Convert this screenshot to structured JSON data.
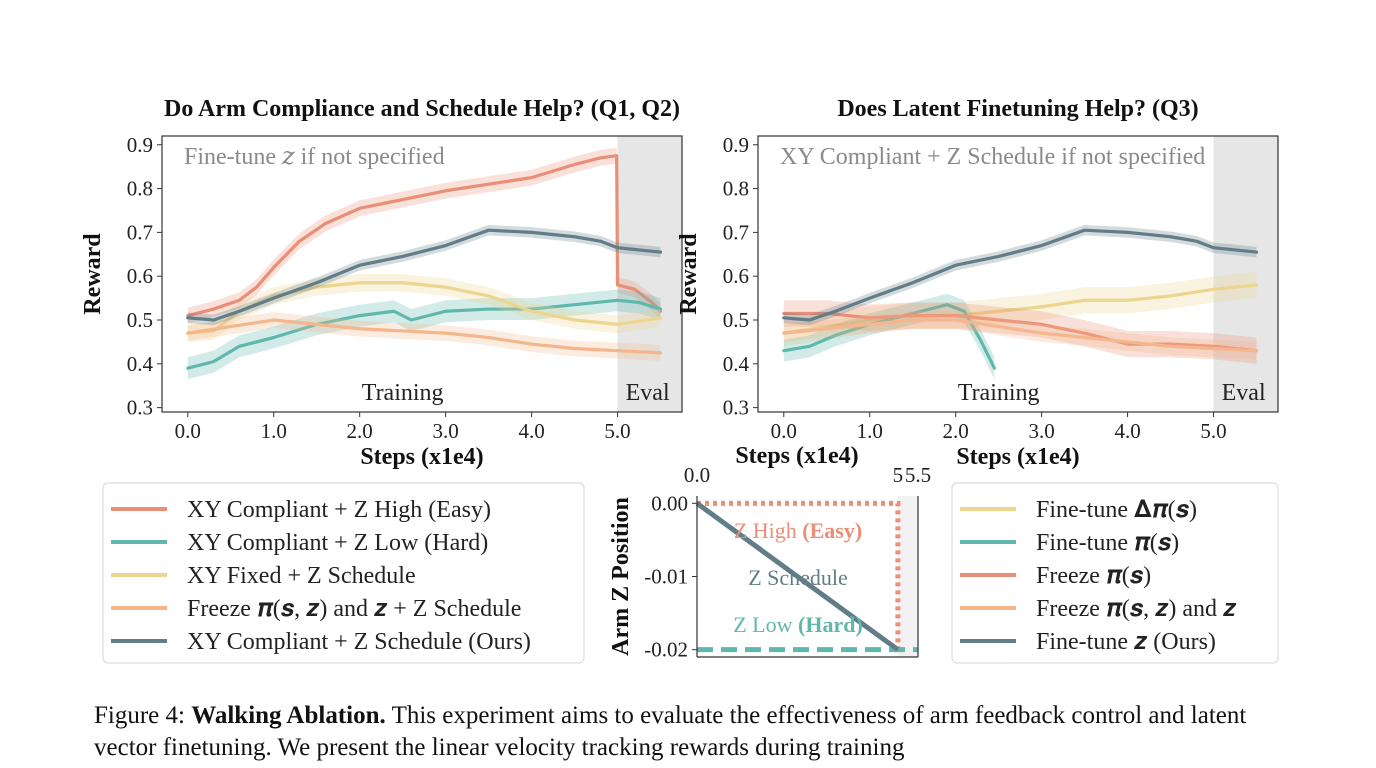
{
  "figure": {
    "caption_label": "Figure 4:",
    "caption_bold": "Walking Ablation.",
    "caption_text": "This experiment aims to evaluate the effectiveness of arm feedback control and latent vector finetuning. We present the linear velocity tracking rewards during training"
  },
  "colors": {
    "red": "#e98e77",
    "teal": "#5fb8ab",
    "yellow": "#ecd58f",
    "orange": "#f3b68d",
    "slate": "#627d87",
    "eval_shade": "#e6e6e6",
    "note": "#8a8a8a"
  },
  "chart_data": [
    {
      "type": "line",
      "title": "Do Arm Compliance and Schedule Help? (Q1, Q2)",
      "xlabel": "Steps (x1e4)",
      "ylabel": "Reward",
      "xlim": [
        -0.3,
        5.75
      ],
      "ylim": [
        0.29,
        0.92
      ],
      "xticks": [
        "0.0",
        "1.0",
        "2.0",
        "3.0",
        "4.0",
        "5.0"
      ],
      "yticks": [
        "0.3",
        "0.4",
        "0.5",
        "0.6",
        "0.7",
        "0.8",
        "0.9"
      ],
      "eval_region": [
        5.0,
        5.75
      ],
      "annotations": {
        "note": "Fine-tune 𝑧 if not specified",
        "training": "Training",
        "eval": "Eval"
      },
      "series": [
        {
          "name": "XY Compliant + Z High (Easy)",
          "color": "#e98e77",
          "band": 0.018,
          "x": [
            0.0,
            0.3,
            0.6,
            0.8,
            1.0,
            1.3,
            1.6,
            2.0,
            2.5,
            3.0,
            3.5,
            4.0,
            4.5,
            4.8,
            4.99,
            5.0,
            5.2,
            5.4,
            5.5
          ],
          "y": [
            0.51,
            0.525,
            0.545,
            0.575,
            0.62,
            0.68,
            0.72,
            0.755,
            0.775,
            0.795,
            0.81,
            0.825,
            0.855,
            0.87,
            0.875,
            0.58,
            0.57,
            0.54,
            0.52
          ]
        },
        {
          "name": "XY Compliant + Z Low (Hard)",
          "color": "#5fb8ab",
          "band": 0.025,
          "x": [
            0.0,
            0.3,
            0.6,
            1.0,
            1.5,
            2.0,
            2.4,
            2.6,
            3.0,
            3.5,
            4.0,
            4.5,
            5.0,
            5.25,
            5.5
          ],
          "y": [
            0.39,
            0.405,
            0.44,
            0.46,
            0.49,
            0.51,
            0.52,
            0.5,
            0.52,
            0.525,
            0.525,
            0.535,
            0.545,
            0.54,
            0.525
          ]
        },
        {
          "name": "XY Fixed + Z Schedule",
          "color": "#ecd58f",
          "band": 0.02,
          "x": [
            0.0,
            0.3,
            0.6,
            1.0,
            1.5,
            2.0,
            2.5,
            3.0,
            3.5,
            4.0,
            4.5,
            5.0,
            5.5
          ],
          "y": [
            0.47,
            0.475,
            0.52,
            0.555,
            0.575,
            0.585,
            0.585,
            0.575,
            0.555,
            0.52,
            0.5,
            0.49,
            0.505
          ]
        },
        {
          "name": "Freeze 𝝅(𝒔, 𝒛) and 𝒛 + Z Schedule",
          "color": "#f3b68d",
          "band": 0.018,
          "x": [
            0.0,
            0.5,
            1.0,
            1.5,
            2.0,
            2.5,
            3.0,
            3.5,
            4.0,
            4.5,
            5.0,
            5.5
          ],
          "y": [
            0.47,
            0.485,
            0.5,
            0.49,
            0.48,
            0.475,
            0.47,
            0.46,
            0.445,
            0.435,
            0.43,
            0.425
          ]
        },
        {
          "name": "XY Compliant + Z Schedule (Ours)",
          "color": "#627d87",
          "band": 0.012,
          "x": [
            0.0,
            0.3,
            0.6,
            1.0,
            1.5,
            2.0,
            2.5,
            3.0,
            3.5,
            4.0,
            4.5,
            4.8,
            5.0,
            5.25,
            5.5
          ],
          "y": [
            0.505,
            0.5,
            0.52,
            0.55,
            0.585,
            0.625,
            0.645,
            0.67,
            0.705,
            0.7,
            0.69,
            0.68,
            0.665,
            0.66,
            0.655
          ]
        }
      ]
    },
    {
      "type": "line",
      "title": "Does Latent Finetuning Help? (Q3)",
      "xlabel": "Steps (x1e4)",
      "ylabel": "Reward",
      "xlim": [
        -0.3,
        5.75
      ],
      "ylim": [
        0.29,
        0.92
      ],
      "xticks": [
        "0.0",
        "1.0",
        "2.0",
        "3.0",
        "4.0",
        "5.0"
      ],
      "yticks": [
        "0.3",
        "0.4",
        "0.5",
        "0.6",
        "0.7",
        "0.8",
        "0.9"
      ],
      "eval_region": [
        5.0,
        5.75
      ],
      "annotations": {
        "note": "XY Compliant + Z Schedule if not specified",
        "training": "Training",
        "eval": "Eval"
      },
      "series": [
        {
          "name": "Fine-tune 𝚫𝝅(𝒔)",
          "color": "#ecd58f",
          "band": 0.03,
          "x": [
            0.0,
            0.5,
            1.0,
            1.5,
            2.0,
            2.5,
            3.0,
            3.5,
            4.0,
            4.5,
            5.0,
            5.5
          ],
          "y": [
            0.47,
            0.485,
            0.5,
            0.51,
            0.51,
            0.52,
            0.53,
            0.545,
            0.545,
            0.555,
            0.57,
            0.58
          ]
        },
        {
          "name": "Fine-tune 𝝅(𝒔)",
          "color": "#5fb8ab",
          "band": 0.025,
          "x": [
            0.0,
            0.3,
            0.6,
            1.0,
            1.3,
            1.6,
            1.9,
            2.1,
            2.3,
            2.45
          ],
          "y": [
            0.43,
            0.44,
            0.465,
            0.49,
            0.505,
            0.52,
            0.535,
            0.52,
            0.45,
            0.39
          ]
        },
        {
          "name": "Freeze 𝝅(𝒔)",
          "color": "#e98e77",
          "band": 0.03,
          "x": [
            0.0,
            0.5,
            1.0,
            1.5,
            2.0,
            2.5,
            3.0,
            3.5,
            4.0,
            4.5,
            5.0,
            5.5
          ],
          "y": [
            0.515,
            0.515,
            0.505,
            0.51,
            0.51,
            0.5,
            0.49,
            0.47,
            0.445,
            0.445,
            0.44,
            0.43
          ]
        },
        {
          "name": "Freeze 𝝅(𝒔, 𝒛) and 𝒛",
          "color": "#f3b68d",
          "band": 0.02,
          "x": [
            0.0,
            0.5,
            1.0,
            1.5,
            2.0,
            2.5,
            3.0,
            3.5,
            4.0,
            4.5,
            5.0,
            5.5
          ],
          "y": [
            0.47,
            0.48,
            0.49,
            0.5,
            0.5,
            0.485,
            0.47,
            0.46,
            0.45,
            0.44,
            0.435,
            0.43
          ]
        },
        {
          "name": "Fine-tune 𝒛 (Ours)",
          "color": "#627d87",
          "band": 0.012,
          "x": [
            0.0,
            0.3,
            0.6,
            1.0,
            1.5,
            2.0,
            2.5,
            3.0,
            3.5,
            4.0,
            4.5,
            4.8,
            5.0,
            5.25,
            5.5
          ],
          "y": [
            0.505,
            0.5,
            0.52,
            0.55,
            0.585,
            0.625,
            0.645,
            0.67,
            0.705,
            0.7,
            0.69,
            0.68,
            0.665,
            0.66,
            0.655
          ]
        }
      ]
    },
    {
      "type": "line",
      "title": "",
      "xlabel": "Steps (x1e4)",
      "ylabel": "Arm Z Position",
      "xlim": [
        0.0,
        5.5
      ],
      "ylim": [
        -0.021,
        0.001
      ],
      "xticks": [
        "0.0",
        "5",
        "5.5"
      ],
      "yticks": [
        "0.00",
        "-0.01",
        "-0.02"
      ],
      "eval_region": [
        5.0,
        5.5
      ],
      "annotations": {
        "z_high": "Z High",
        "z_high_b": "(Easy)",
        "z_schedule": "Z Schedule",
        "z_low": "Z Low",
        "z_low_b": "(Hard)"
      },
      "series": [
        {
          "name": "Z High (Easy)",
          "color": "#e98e77",
          "x": [
            0.0,
            5.0,
            5.0
          ],
          "y": [
            0.0,
            0.0,
            -0.02
          ]
        },
        {
          "name": "Z Low (Hard)",
          "color": "#5fb8ab",
          "x": [
            0.0,
            5.5
          ],
          "y": [
            -0.02,
            -0.02
          ]
        },
        {
          "name": "Z Schedule",
          "color": "#627d87",
          "x": [
            0.0,
            5.0
          ],
          "y": [
            0.0,
            -0.02
          ]
        }
      ]
    }
  ]
}
